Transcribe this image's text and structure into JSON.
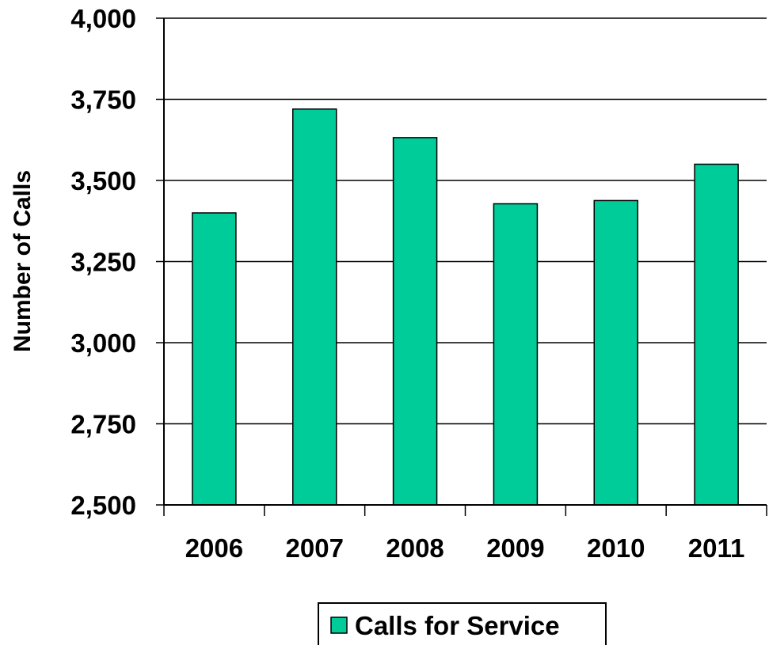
{
  "chart_data": {
    "type": "bar",
    "title": "",
    "xlabel": "",
    "ylabel": "Number of Calls",
    "categories": [
      "2006",
      "2007",
      "2008",
      "2009",
      "2010",
      "2011"
    ],
    "series": [
      {
        "name": "Calls for Service",
        "values": [
          3400,
          3720,
          3632,
          3428,
          3438,
          3550
        ]
      }
    ],
    "ylim": [
      2500,
      4000
    ],
    "yticks": [
      "2,500",
      "2,750",
      "3,000",
      "3,250",
      "3,500",
      "3,750",
      "4,000"
    ],
    "grid": "horizontal",
    "legend_position": "bottom",
    "colors": {
      "bar": "#00CC99",
      "stroke": "#000000"
    }
  }
}
